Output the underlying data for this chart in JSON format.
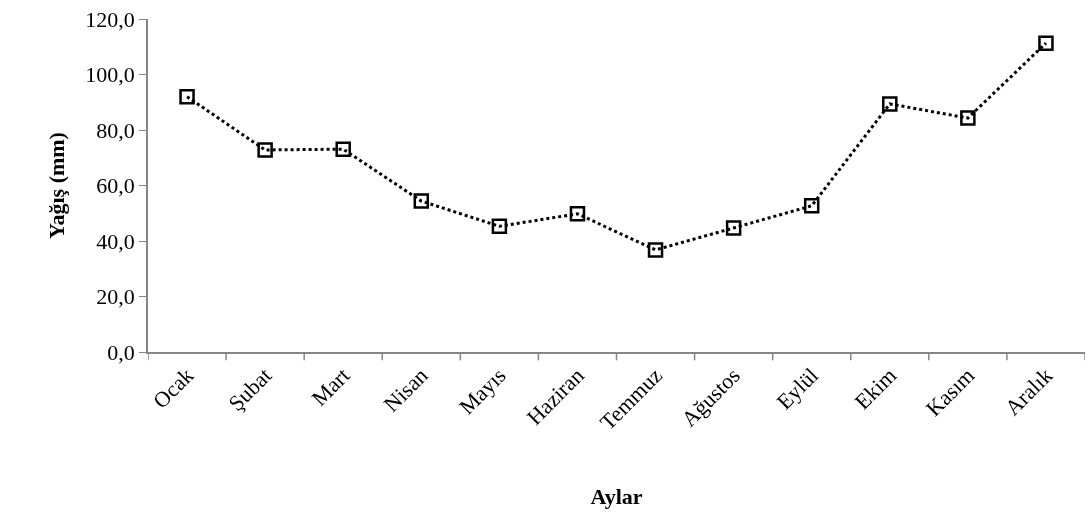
{
  "chart_data": {
    "type": "line",
    "xlabel": "Aylar",
    "ylabel": "Yağış (mm)",
    "categories": [
      "Ocak",
      "Şubat",
      "Mart",
      "Nisan",
      "Mayıs",
      "Haziran",
      "Temmuz",
      "Ağustos",
      "Eylül",
      "Ekim",
      "Kasım",
      "Aralık"
    ],
    "series": [
      {
        "color": "#000000",
        "values": [
          92.0,
          72.8,
          73.1,
          54.4,
          45.3,
          49.8,
          36.8,
          44.7,
          52.7,
          89.4,
          84.3,
          111.3
        ]
      }
    ],
    "ylim": [
      0,
      120
    ],
    "yticks": [
      {
        "value": 0,
        "label": "0,0"
      },
      {
        "value": 20,
        "label": "20,0"
      },
      {
        "value": 40,
        "label": "40,0"
      },
      {
        "value": 60,
        "label": "60,0"
      },
      {
        "value": 80,
        "label": "80,0"
      },
      {
        "value": 100,
        "label": "100,0"
      },
      {
        "value": 120,
        "label": "120,0"
      }
    ],
    "marker": "square",
    "line_style": "dotted"
  }
}
